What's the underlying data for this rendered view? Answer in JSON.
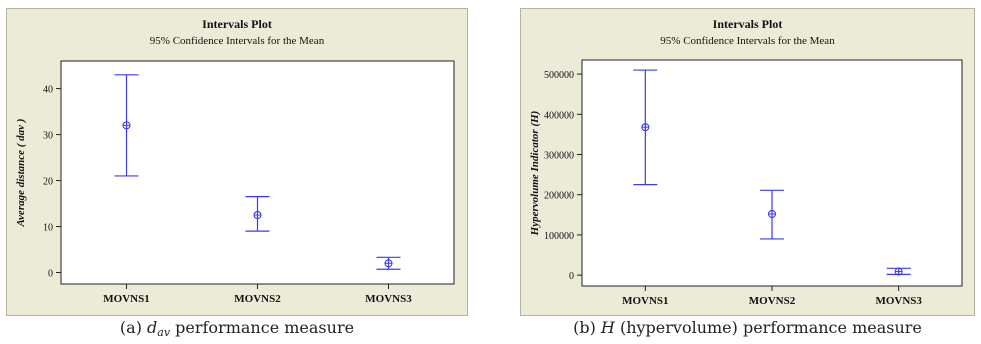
{
  "chart_data": [
    {
      "type": "errorbar",
      "title": "Intervals Plot",
      "subtitle": "95% Confidence Intervals for the Mean",
      "ylabel": "Average distance ( dav )",
      "xlabel": "",
      "categories": [
        "MOVNS1",
        "MOVNS2",
        "MOVNS3"
      ],
      "means": [
        32,
        12.5,
        2
      ],
      "lower": [
        21,
        9,
        0.7
      ],
      "upper": [
        43,
        16.5,
        3.3
      ],
      "ylim": [
        -2.5,
        46
      ],
      "yticks": [
        0,
        10,
        20,
        30,
        40
      ],
      "ytick_labels": [
        "0",
        "10",
        "20",
        "30",
        "40"
      ],
      "grid": false,
      "color": "#3b3bf0"
    },
    {
      "type": "errorbar",
      "title": "Intervals Plot",
      "subtitle": "95% Confidence Intervals for the Mean",
      "ylabel": "Hypervolume Indicator (H)",
      "xlabel": "",
      "categories": [
        "MOVNS1",
        "MOVNS2",
        "MOVNS3"
      ],
      "means": [
        368000,
        152000,
        9000
      ],
      "lower": [
        225000,
        90000,
        2000
      ],
      "upper": [
        510000,
        211000,
        17000
      ],
      "ylim": [
        -27000,
        535000
      ],
      "yticks": [
        0,
        100000,
        200000,
        300000,
        400000,
        500000
      ],
      "ytick_labels": [
        "0",
        "100000",
        "200000",
        "300000",
        "400000",
        "500000"
      ],
      "grid": false,
      "color": "#3b3bf0"
    }
  ],
  "captions": {
    "a": {
      "prefix": "(a) ",
      "symbol": "d",
      "subscript": "av",
      "suffix": " performance measure"
    },
    "b": {
      "prefix": "(b) ",
      "symbol": "H",
      "suffix": " (hypervolume) performance measure"
    }
  },
  "colors": {
    "panel_bg": "#ecebd8",
    "plot_bg": "#ffffff",
    "series": "#3b3bf0"
  }
}
